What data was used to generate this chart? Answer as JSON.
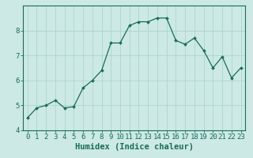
{
  "xlabel": "Humidex (Indice chaleur)",
  "x": [
    0,
    1,
    2,
    3,
    4,
    5,
    6,
    7,
    8,
    9,
    10,
    11,
    12,
    13,
    14,
    15,
    16,
    17,
    18,
    19,
    20,
    21,
    22,
    23
  ],
  "y": [
    4.5,
    4.9,
    5.0,
    5.2,
    4.9,
    4.95,
    5.7,
    6.0,
    6.4,
    7.5,
    7.5,
    8.2,
    8.35,
    8.35,
    8.5,
    8.5,
    7.6,
    7.45,
    7.7,
    7.2,
    6.5,
    6.95,
    6.1,
    6.5
  ],
  "line_color": "#1a6b5a",
  "marker": "D",
  "marker_size": 2,
  "bg_color": "#cce9e5",
  "grid_color": "#aed4cf",
  "ylim": [
    4.0,
    9.0
  ],
  "xlim": [
    -0.5,
    23.5
  ],
  "yticks": [
    4,
    5,
    6,
    7,
    8
  ],
  "xticks": [
    0,
    1,
    2,
    3,
    4,
    5,
    6,
    7,
    8,
    9,
    10,
    11,
    12,
    13,
    14,
    15,
    16,
    17,
    18,
    19,
    20,
    21,
    22,
    23
  ],
  "axis_color": "#1a6b5a",
  "tick_color": "#1a6b5a",
  "label_fontsize": 6.5,
  "xlabel_fontsize": 7.5
}
